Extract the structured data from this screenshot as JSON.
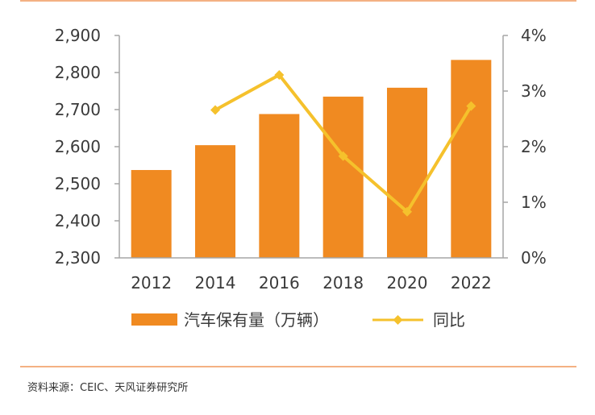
{
  "colors": {
    "bar": "#F08A21",
    "line": "#F5C12C",
    "axis": "#A6A6A6",
    "text": "#3A3A3A",
    "rule": "#F4B183"
  },
  "chart_data": {
    "type": "bar",
    "categories": [
      "2012",
      "2014",
      "2016",
      "2018",
      "2020",
      "2022"
    ],
    "series": [
      {
        "name": "汽车保有量（万辆）",
        "type": "bar",
        "axis": "left",
        "values": [
          2537,
          2604,
          2688,
          2735,
          2759,
          2834
        ]
      },
      {
        "name": "同比",
        "type": "line",
        "axis": "right",
        "marker": "diamond",
        "values": [
          null,
          0.0266,
          0.0329,
          0.0183,
          0.0083,
          0.0273
        ]
      }
    ],
    "y_left": {
      "min": 2300,
      "max": 2900,
      "ticks": [
        "2,300",
        "2,400",
        "2,500",
        "2,600",
        "2,700",
        "2,800",
        "2,900"
      ]
    },
    "y_right": {
      "min": 0,
      "max": 0.04,
      "ticks": [
        "0%",
        "1%",
        "2%",
        "3%",
        "4%"
      ]
    },
    "legend_position": "bottom",
    "grid": false
  },
  "source_text": "资料来源：CEIC、天风证券研究所"
}
